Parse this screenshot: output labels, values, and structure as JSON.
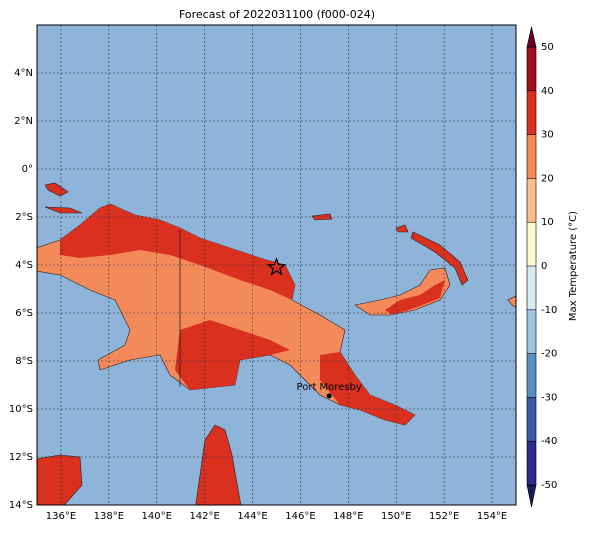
{
  "title": "Forecast of 2022031100 (f000-024)",
  "map": {
    "xlim": [
      135,
      155
    ],
    "ylim": [
      -14,
      6
    ],
    "xticks": [
      {
        "value": 136,
        "label": "136°E"
      },
      {
        "value": 138,
        "label": "138°E"
      },
      {
        "value": 140,
        "label": "140°E"
      },
      {
        "value": 142,
        "label": "142°E"
      },
      {
        "value": 144,
        "label": "144°E"
      },
      {
        "value": 146,
        "label": "146°E"
      },
      {
        "value": 148,
        "label": "148°E"
      },
      {
        "value": 150,
        "label": "150°E"
      },
      {
        "value": 152,
        "label": "152°E"
      },
      {
        "value": 154,
        "label": "154°E"
      }
    ],
    "yticks": [
      {
        "value": 4,
        "label": "4°N"
      },
      {
        "value": 2,
        "label": "2°N"
      },
      {
        "value": 0,
        "label": "0°"
      },
      {
        "value": -2,
        "label": "2°S"
      },
      {
        "value": -4,
        "label": "4°S"
      },
      {
        "value": -6,
        "label": "6°S"
      },
      {
        "value": -8,
        "label": "8°S"
      },
      {
        "value": -10,
        "label": "10°S"
      },
      {
        "value": -12,
        "label": "12°S"
      },
      {
        "value": -14,
        "label": "14°S"
      }
    ],
    "places": [
      {
        "name": "Port Moresby",
        "lon": 147.2,
        "lat": -9.45
      }
    ],
    "marker": {
      "lon": 145,
      "lat": -4.1
    }
  },
  "colorbar": {
    "label": "Max Temperature (°C)",
    "levels": [
      -50,
      -40,
      -30,
      -20,
      -10,
      0,
      10,
      20,
      30,
      40,
      50
    ],
    "colors": [
      "#2b2b8a",
      "#3a5aa8",
      "#5c8ec2",
      "#9bc4e0",
      "#d4ebf2",
      "#fff8d0",
      "#fbc08e",
      "#f48a5a",
      "#d93020",
      "#a01020"
    ],
    "under": "#1a1a5a",
    "over": "#6a0020"
  }
}
